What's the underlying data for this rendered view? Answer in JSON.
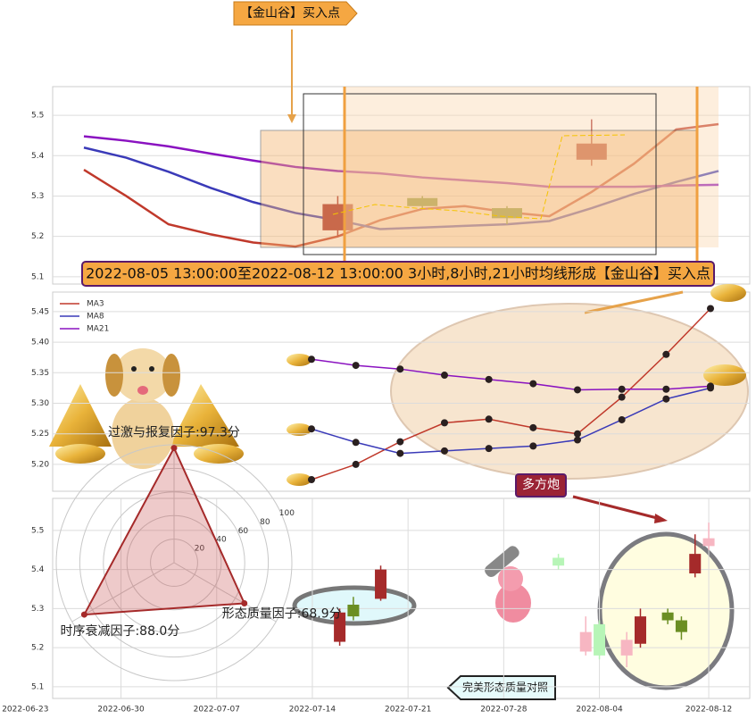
{
  "annotations": {
    "callout": "【金山谷】买入点",
    "banner": "2022-08-05 13:00:00至2022-08-12 13:00:00 3小时,8小时,21小时均线形成【金山谷】买入点",
    "signal": "多方炮",
    "compare": "完美形态质量对照"
  },
  "chart_data": [
    {
      "type": "candlestick",
      "grid": true,
      "ylim": [
        5.082,
        5.571
      ],
      "yticks": [
        5.1,
        5.2,
        5.3,
        5.4,
        5.5
      ],
      "series": [
        {
          "name": "MA3",
          "color": "#c0392b",
          "values": [
            5.365,
            5.3,
            5.23,
            5.205,
            5.185,
            5.175,
            5.2,
            5.24,
            5.268,
            5.275,
            5.26,
            5.25,
            5.31,
            5.38,
            5.465,
            5.478
          ]
        },
        {
          "name": "MA8",
          "color": "#3a3ab8",
          "values": [
            5.42,
            5.395,
            5.36,
            5.32,
            5.285,
            5.258,
            5.24,
            5.218,
            5.222,
            5.226,
            5.23,
            5.238,
            5.27,
            5.305,
            5.335,
            5.362
          ]
        },
        {
          "name": "MA21",
          "color": "#8a12c0",
          "values": [
            5.448,
            5.437,
            5.423,
            5.405,
            5.388,
            5.372,
            5.362,
            5.356,
            5.346,
            5.339,
            5.332,
            5.323,
            5.323,
            5.323,
            5.326,
            5.328
          ]
        }
      ],
      "candles": [
        null,
        null,
        null,
        null,
        null,
        null,
        {
          "open": 5.215,
          "high": 5.3,
          "low": 5.2,
          "close": 5.28,
          "color": "#a52a2a"
        },
        null,
        {
          "open": 5.295,
          "high": 5.3,
          "low": 5.27,
          "close": 5.275,
          "color": "#6b8e23"
        },
        null,
        {
          "open": 5.27,
          "high": 5.275,
          "low": 5.23,
          "close": 5.245,
          "color": "#6b8e23"
        },
        null,
        {
          "open": 5.39,
          "high": 5.49,
          "low": 5.375,
          "close": 5.43,
          "color": "#a52a2a"
        },
        null,
        null,
        null
      ]
    },
    {
      "type": "line",
      "grid": true,
      "legend": "upper left",
      "markers": true,
      "ylim": [
        5.156,
        5.482
      ],
      "yticks": [
        {
          "value": 5.2,
          "label": "5.20"
        },
        5.25,
        {
          "value": 5.3,
          "label": "5.30"
        },
        5.35,
        {
          "value": 5.4,
          "label": "5.40"
        },
        5.45
      ],
      "series": [
        {
          "name": "MA3",
          "color": "#c0392b",
          "values": [
            5.175,
            5.2,
            5.237,
            5.268,
            5.274,
            5.26,
            5.25,
            5.31,
            5.38,
            5.455
          ]
        },
        {
          "name": "MA8",
          "color": "#3a3ab8",
          "values": [
            5.258,
            5.236,
            5.218,
            5.222,
            5.226,
            5.23,
            5.24,
            5.273,
            5.307,
            5.325
          ]
        },
        {
          "name": "MA21",
          "color": "#8a12c0",
          "values": [
            5.372,
            5.362,
            5.356,
            5.346,
            5.339,
            5.332,
            5.322,
            5.323,
            5.323,
            5.328
          ]
        }
      ]
    },
    {
      "type": "candlestick",
      "grid": true,
      "ylim": [
        5.07,
        5.582
      ],
      "yticks": [
        5.1,
        5.2,
        5.3,
        5.4,
        5.5
      ],
      "xlim": [
        "2022-06-25",
        "2022-08-15"
      ],
      "xticks": [
        "2022-06-23",
        "2022-06-30",
        "2022-07-07",
        "2022-07-14",
        "2022-07-21",
        "2022-07-28",
        "2022-08-04",
        "2022-08-12"
      ],
      "candles": [
        {
          "x": "2022-07-16",
          "open": 5.29,
          "high": 5.3,
          "low": 5.205,
          "close": 5.215,
          "color": "#a52a2a"
        },
        {
          "x": "2022-07-17",
          "open": 5.28,
          "high": 5.33,
          "low": 5.27,
          "close": 5.31,
          "color": "#6b8e23"
        },
        {
          "x": "2022-07-19",
          "open": 5.325,
          "high": 5.41,
          "low": 5.32,
          "close": 5.4,
          "color": "#a52a2a"
        },
        {
          "x": "2022-08-01",
          "open": 5.43,
          "high": 5.44,
          "low": 5.4,
          "close": 5.41,
          "color": "#b7f5b7"
        },
        {
          "x": "2022-08-03",
          "open": 5.19,
          "high": 5.28,
          "low": 5.18,
          "close": 5.24,
          "color": "#f7b6c2"
        },
        {
          "x": "2022-08-04",
          "open": 5.26,
          "high": 5.27,
          "low": 5.17,
          "close": 5.18,
          "color": "#b7f5b7"
        },
        {
          "x": "2022-08-06",
          "open": 5.18,
          "high": 5.24,
          "low": 5.15,
          "close": 5.22,
          "color": "#f7b6c2"
        },
        {
          "x": "2022-08-07",
          "open": 5.21,
          "high": 5.3,
          "low": 5.2,
          "close": 5.28,
          "color": "#a52a2a"
        },
        {
          "x": "2022-08-09",
          "open": 5.29,
          "high": 5.3,
          "low": 5.26,
          "close": 5.27,
          "color": "#6b8e23"
        },
        {
          "x": "2022-08-10",
          "open": 5.27,
          "high": 5.28,
          "low": 5.22,
          "close": 5.24,
          "color": "#6b8e23"
        },
        {
          "x": "2022-08-11",
          "open": 5.39,
          "high": 5.49,
          "low": 5.38,
          "close": 5.44,
          "color": "#a52a2a"
        },
        {
          "x": "2022-08-12",
          "open": 5.46,
          "high": 5.52,
          "low": 5.45,
          "close": 5.48,
          "color": "#f7b6c2"
        }
      ]
    },
    {
      "type": "radar",
      "rlim": [
        0,
        100
      ],
      "rticks": [
        20,
        40,
        60,
        80,
        100
      ],
      "color": "#a52a2a",
      "axes": [
        "过激与报复因子",
        "时序衰减因子",
        "形态质量因子"
      ],
      "values": [
        97.3,
        88.0,
        68.9
      ],
      "value_labels": [
        "过激与报复因子:97.3分",
        "时序衰减因子:88.0分",
        "形态质量因子:68.9分"
      ]
    }
  ]
}
